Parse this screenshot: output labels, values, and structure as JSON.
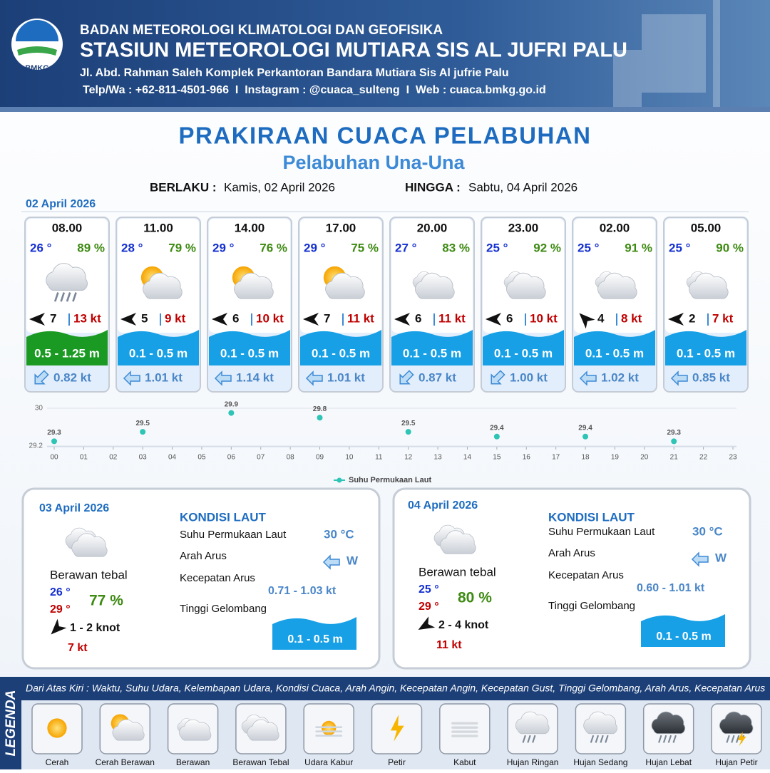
{
  "header": {
    "agency": "BADAN METEOROLOGI KLIMATOLOGI DAN GEOFISIKA",
    "station": "STASIUN METEOROLOGI MUTIARA SIS AL JUFRI PALU",
    "address": "Jl. Abd. Rahman Saleh Komplek Perkantoran Bandara Mutiara Sis Al jufrie Palu",
    "contact": "Telp/Wa : +62-811-4501-966  I  Instagram : @cuaca_sulteng  I  Web : cuaca.bmkg.go.id",
    "logo": "BMKG"
  },
  "title": "PRAKIRAAN CUACA PELABUHAN",
  "subtitle": "Pelabuhan Una-Una",
  "validity": {
    "from_label": "BERLAKU :",
    "from": "Kamis, 02 April 2026",
    "to_label": "HINGGA :",
    "to": "Sabtu, 04 April 2026"
  },
  "today": {
    "date": "02 April 2026",
    "forecasts": [
      {
        "time": "08.00",
        "temp": "26 °",
        "humidity": "89 %",
        "wind": "7",
        "gust": "13 kt",
        "wave": "0.5 - 1.25 m",
        "current": "0.82 kt"
      },
      {
        "time": "11.00",
        "temp": "28 °",
        "humidity": "79 %",
        "wind": "5",
        "gust": "9 kt",
        "wave": "0.1 - 0.5 m",
        "current": "1.01 kt"
      },
      {
        "time": "14.00",
        "temp": "29 °",
        "humidity": "76 %",
        "wind": "6",
        "gust": "10 kt",
        "wave": "0.1 - 0.5 m",
        "current": "1.14 kt"
      },
      {
        "time": "17.00",
        "temp": "29 °",
        "humidity": "75 %",
        "wind": "7",
        "gust": "11 kt",
        "wave": "0.1 - 0.5 m",
        "current": "1.01 kt"
      },
      {
        "time": "20.00",
        "temp": "27 °",
        "humidity": "83 %",
        "wind": "6",
        "gust": "11 kt",
        "wave": "0.1 - 0.5 m",
        "current": "0.87 kt"
      },
      {
        "time": "23.00",
        "temp": "25 °",
        "humidity": "92 %",
        "wind": "6",
        "gust": "10 kt",
        "wave": "0.1 - 0.5 m",
        "current": "1.00 kt"
      },
      {
        "time": "02.00",
        "temp": "25 °",
        "humidity": "91 %",
        "wind": "4",
        "gust": "8 kt",
        "wave": "0.1 - 0.5 m",
        "current": "1.02 kt"
      },
      {
        "time": "05.00",
        "temp": "25 °",
        "humidity": "90 %",
        "wind": "2",
        "gust": "7 kt",
        "wave": "0.1 - 0.5 m",
        "current": "0.85 kt"
      }
    ]
  },
  "chart_data": {
    "type": "line",
    "x": [
      0,
      3,
      6,
      9,
      12,
      15,
      18,
      21
    ],
    "series": [
      {
        "name": "Suhu Permukaan Laut",
        "color": "#2ec4b6",
        "values": [
          29.3,
          29.5,
          29.9,
          29.8,
          29.5,
          29.4,
          29.4,
          29.3
        ]
      }
    ],
    "xlim": [
      0,
      23
    ],
    "xticks": [
      {
        "value": 0,
        "label": "00"
      },
      {
        "value": 1,
        "label": "01"
      },
      {
        "value": 2,
        "label": "02"
      },
      {
        "value": 3,
        "label": "03"
      },
      {
        "value": 4,
        "label": "04"
      },
      {
        "value": 5,
        "label": "05"
      },
      {
        "value": 6,
        "label": "06"
      },
      {
        "value": 7,
        "label": "07"
      },
      {
        "value": 8,
        "label": "08"
      },
      {
        "value": 9,
        "label": "09"
      },
      10,
      11,
      12,
      13,
      14,
      15,
      16,
      17,
      18,
      19,
      20,
      21,
      22,
      23
    ],
    "ylim": [
      29.2,
      30
    ],
    "yticks": [
      29.2,
      30
    ]
  },
  "days": [
    {
      "date": "03 April 2026",
      "condition": "Berawan tebal",
      "temp_min": "26 °",
      "temp_max": "29 °",
      "humidity": "77 %",
      "wind": "1 - 2 knot",
      "gust": "7 kt",
      "sea_title": "KONDISI LAUT",
      "sst_label": "Suhu Permukaan Laut",
      "sst": "30 °C",
      "dir_label": "Arah Arus",
      "dir": "W",
      "speed_label": "Kecepatan Arus",
      "speed": "0.71 - 1.03 kt",
      "wave_label": "Tinggi Gelombang",
      "wave": "0.1 - 0.5 m"
    },
    {
      "date": "04 April 2026",
      "condition": "Berawan tebal",
      "temp_min": "25 °",
      "temp_max": "29 °",
      "humidity": "80 %",
      "wind": "2 - 4 knot",
      "gust": "11 kt",
      "sea_title": "KONDISI LAUT",
      "sst_label": "Suhu Permukaan Laut",
      "sst": "30 °C",
      "dir_label": "Arah Arus",
      "dir": "W",
      "speed_label": "Kecepatan Arus",
      "speed": "0.60 - 1.01 kt",
      "wave_label": "Tinggi Gelombang",
      "wave": "0.1 - 0.5 m"
    }
  ],
  "legend": {
    "title": "LEGENDA",
    "description": "Dari Atas Kiri : Waktu, Suhu Udara, Kelembapan Udara, Kondisi Cuaca, Arah Angin, Kecepatan Angin, Kecepatan Gust, Tinggi Gelombang, Arah Arus, Kecepatan Arus",
    "items": [
      "Cerah",
      "Cerah Berawan",
      "Berawan",
      "Berawan Tebal",
      "Udara Kabur",
      "Petir",
      "Kabut",
      "Hujan Ringan",
      "Hujan Sedang",
      "Hujan Lebat",
      "Hujan Petir"
    ]
  }
}
